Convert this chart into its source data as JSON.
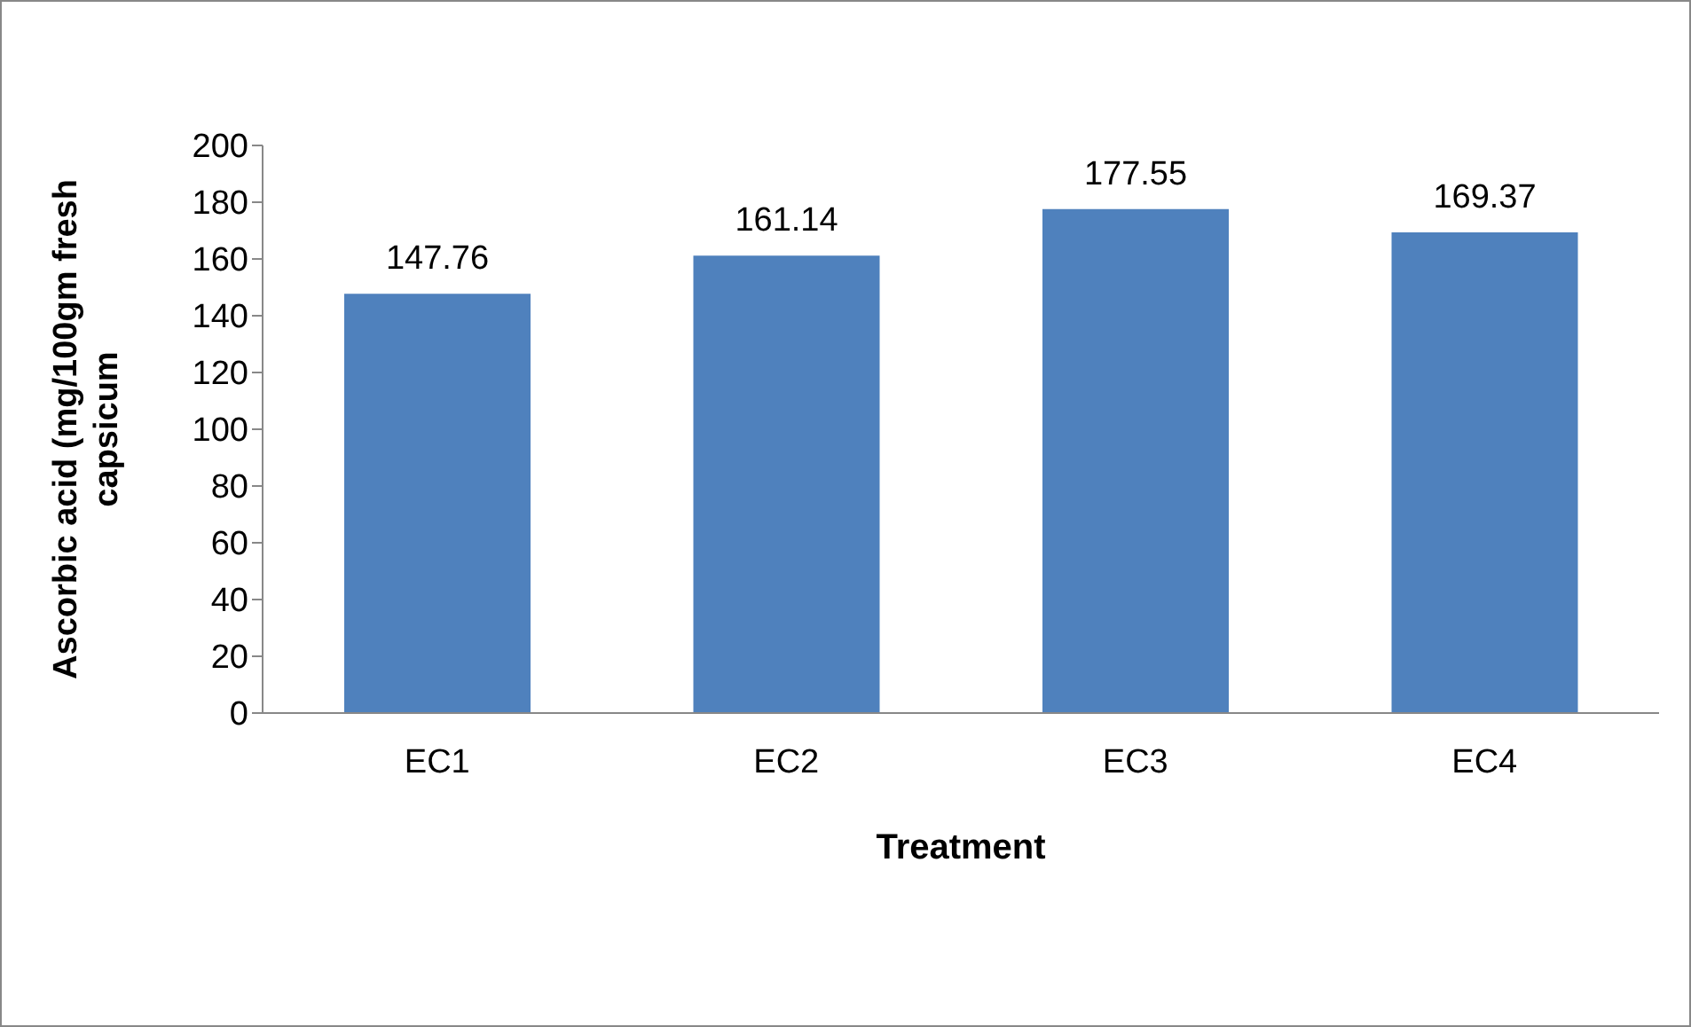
{
  "chart_data": {
    "type": "bar",
    "xlabel": "Treatment",
    "ylabel": "Ascorbic acid (mg/100gm fresh capsicum",
    "categories": [
      "EC1",
      "EC2",
      "EC3",
      "EC4"
    ],
    "values": [
      147.76,
      161.14,
      177.55,
      169.37
    ],
    "color": "#4f81bd",
    "ylim": [
      0,
      200
    ],
    "yticks": [
      0,
      20,
      40,
      60,
      80,
      100,
      120,
      140,
      160,
      180,
      200
    ],
    "data_labels": true,
    "grid": false,
    "legend": false
  }
}
